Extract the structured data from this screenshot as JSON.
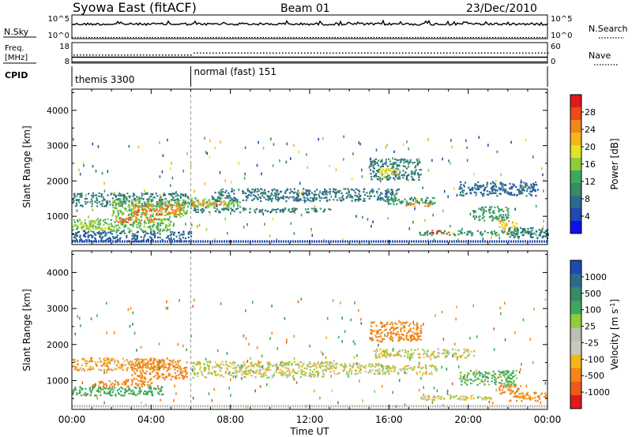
{
  "header": {
    "title": "Syowa East (fitACF)",
    "beam": "Beam 01",
    "date": "23/Dec/2010"
  },
  "nsky_panel": {
    "left_label": "N.Sky",
    "left_ticks": [
      "10^5",
      "10^0"
    ],
    "right_label": "N.Search",
    "right_ticks": [
      "10^5",
      "10^0"
    ],
    "legend_style": "dotted"
  },
  "freq_panel": {
    "left_label_line1": "Freq.",
    "left_label_line2": "[MHz]",
    "left_ticks": [
      "18",
      "8"
    ],
    "right_label": "Nave",
    "right_ticks": [
      "60",
      "0"
    ],
    "legend_style": "dotted"
  },
  "cpid": {
    "label": "CPID",
    "segments": [
      {
        "name": "themis 3300",
        "start_hour": 0,
        "end_hour": 6
      },
      {
        "name": "normal (fast) 151",
        "start_hour": 6,
        "end_hour": 24
      }
    ]
  },
  "chart_data": [
    {
      "type": "heatmap",
      "name": "power",
      "ylabel": "Slant Range [km]",
      "ylim": [
        200,
        4600
      ],
      "yticks": [
        1000,
        2000,
        3000,
        4000
      ],
      "xlim": [
        0,
        24
      ],
      "colorbar": {
        "label": "Power [dB]",
        "range": [
          0,
          32
        ],
        "ticks": [
          "4",
          "8",
          "12",
          "16",
          "20",
          "24",
          "28"
        ],
        "colors": [
          "#1010ee",
          "#1f49b2",
          "#2c6b8e",
          "#378a68",
          "#3fa85e",
          "#8fcc3b",
          "#e2e32a",
          "#f3b61c",
          "#f2861a",
          "#ec4a1a",
          "#e01a1a"
        ]
      },
      "regions": [
        {
          "x0": 0.0,
          "x1": 5.9,
          "y0": 1300,
          "y1": 1680,
          "value": 9
        },
        {
          "x0": 2.0,
          "x1": 5.8,
          "y0": 1000,
          "y1": 1500,
          "value": 15
        },
        {
          "x0": 3.0,
          "x1": 5.5,
          "y0": 1050,
          "y1": 1350,
          "value": 25
        },
        {
          "x0": 0.0,
          "x1": 5.0,
          "y0": 600,
          "y1": 950,
          "value": 14
        },
        {
          "x0": 2.2,
          "x1": 4.2,
          "y0": 850,
          "y1": 1000,
          "value": 26
        },
        {
          "x0": 0.0,
          "x1": 2.2,
          "y0": 650,
          "y1": 800,
          "value": 18
        },
        {
          "x0": 0.0,
          "x1": 6.0,
          "y0": 300,
          "y1": 600,
          "value": 7
        },
        {
          "x0": 6.0,
          "x1": 13.1,
          "y0": 1130,
          "y1": 1250,
          "value": 9
        },
        {
          "x0": 5.8,
          "x1": 8.5,
          "y0": 1250,
          "y1": 1550,
          "value": 14
        },
        {
          "x0": 6.0,
          "x1": 7.8,
          "y0": 1300,
          "y1": 1450,
          "value": 23
        },
        {
          "x0": 7.0,
          "x1": 16.5,
          "y0": 1450,
          "y1": 1800,
          "value": 8
        },
        {
          "x0": 15.0,
          "x1": 17.6,
          "y0": 2050,
          "y1": 2650,
          "value": 9
        },
        {
          "x0": 15.5,
          "x1": 16.6,
          "y0": 2150,
          "y1": 2400,
          "value": 20
        },
        {
          "x0": 15.8,
          "x1": 18.3,
          "y0": 1350,
          "y1": 1550,
          "value": 12
        },
        {
          "x0": 16.8,
          "x1": 18.2,
          "y0": 1300,
          "y1": 1400,
          "value": 24
        },
        {
          "x0": 19.5,
          "x1": 23.5,
          "y0": 1600,
          "y1": 2000,
          "value": 7
        },
        {
          "x0": 20.2,
          "x1": 22.0,
          "y0": 900,
          "y1": 1300,
          "value": 12
        },
        {
          "x0": 21.5,
          "x1": 22.5,
          "y0": 650,
          "y1": 900,
          "value": 22
        },
        {
          "x0": 17.5,
          "x1": 24.0,
          "y0": 480,
          "y1": 620,
          "value": 11
        },
        {
          "x0": 18.0,
          "x1": 19.0,
          "y0": 520,
          "y1": 620,
          "value": 28
        },
        {
          "x0": 22.0,
          "x1": 24.0,
          "y0": 400,
          "y1": 700,
          "value": 8
        }
      ]
    },
    {
      "type": "heatmap",
      "name": "velocity",
      "ylabel": "Slant Range [km]",
      "xlabel": "Time UT",
      "ylim": [
        200,
        4600
      ],
      "yticks": [
        1000,
        2000,
        3000,
        4000
      ],
      "xlim": [
        0,
        24
      ],
      "xticks": [
        "00:00",
        "04:00",
        "08:00",
        "12:00",
        "16:00",
        "20:00",
        "00:00"
      ],
      "colorbar": {
        "label": "Velocity [m s^-1]",
        "range": [
          -1200,
          1200
        ],
        "ticks": [
          "1000",
          "500",
          "100",
          "25",
          "-25",
          "-100",
          "-500",
          "-1000"
        ],
        "colors": [
          "#e01a1a",
          "#ec5a1c",
          "#f2861a",
          "#f3b61c",
          "#c8c8c0",
          "#bdbdb5",
          "#8fcc3b",
          "#3fa85e",
          "#378a68",
          "#2c6b8e",
          "#1f49b2"
        ]
      },
      "regions": [
        {
          "x0": 0.0,
          "x1": 5.0,
          "y0": 1300,
          "y1": 1650,
          "value": -90
        },
        {
          "x0": 3.0,
          "x1": 5.8,
          "y0": 1050,
          "y1": 1600,
          "value": -250
        },
        {
          "x0": 1.0,
          "x1": 4.0,
          "y0": 850,
          "y1": 1050,
          "value": -200
        },
        {
          "x0": 0.0,
          "x1": 4.6,
          "y0": 600,
          "y1": 850,
          "value": 300
        },
        {
          "x0": 6.0,
          "x1": 13.1,
          "y0": 1100,
          "y1": 1550,
          "value": 5
        },
        {
          "x0": 13.0,
          "x1": 15.5,
          "y0": 1200,
          "y1": 1500,
          "value": 10
        },
        {
          "x0": 15.0,
          "x1": 17.6,
          "y0": 2100,
          "y1": 2650,
          "value": -200
        },
        {
          "x0": 15.2,
          "x1": 20.3,
          "y0": 1650,
          "y1": 1900,
          "value": 5
        },
        {
          "x0": 15.6,
          "x1": 18.4,
          "y0": 1200,
          "y1": 1450,
          "value": 0
        },
        {
          "x0": 19.5,
          "x1": 22.4,
          "y0": 900,
          "y1": 1300,
          "value": 150
        },
        {
          "x0": 21.5,
          "x1": 22.7,
          "y0": 650,
          "y1": 900,
          "value": -200
        },
        {
          "x0": 17.5,
          "x1": 21.2,
          "y0": 480,
          "y1": 620,
          "value": 8
        },
        {
          "x0": 22.0,
          "x1": 24.0,
          "y0": 450,
          "y1": 700,
          "value": -150
        }
      ]
    }
  ]
}
